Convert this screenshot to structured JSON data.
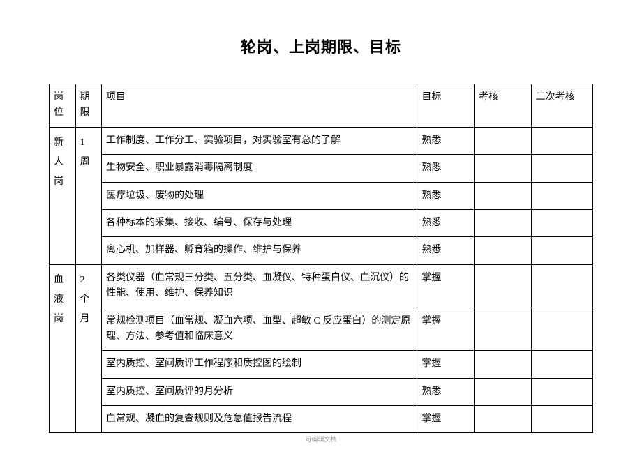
{
  "title": "轮岗、上岗期限、目标",
  "headers": {
    "position": "岗位",
    "duration": "期限",
    "item": "项目",
    "target": "目标",
    "assess1": "考核",
    "assess2": "二次考核"
  },
  "group1": {
    "position": "新人岗",
    "duration": "1周",
    "rows": [
      {
        "item": "工作制度、工作分工、实验项目，对实验室有总的了解",
        "target": "熟悉"
      },
      {
        "item": "生物安全、职业暴露消毒隔离制度",
        "target": "熟悉"
      },
      {
        "item": "医疗垃圾、废物的处理",
        "target": "熟悉"
      },
      {
        "item": "各种标本的采集、接收、编号、保存与处理",
        "target": "熟悉"
      },
      {
        "item": "离心机、加样器、孵育箱的操作、维护与保养",
        "target": "熟悉"
      }
    ]
  },
  "group2": {
    "position": "血液岗",
    "duration": "2个月",
    "rows": [
      {
        "item": "各类仪器（血常规三分类、五分类、血凝仪、特种蛋白仪、血沉仪）的性能、使用、维护、保养知识",
        "target": "掌握"
      },
      {
        "item": "常规检测项目（血常规、凝血六项、血型、超敏 C 反应蛋白）的测定原理、方法、参考值和临床意义",
        "target": "掌握"
      },
      {
        "item": "室内质控、室间质评工作程序和质控图的绘制",
        "target": "掌握"
      },
      {
        "item": "室内质控、室间质评的月分析",
        "target": "熟悉"
      },
      {
        "item": "血常规、凝血的复查规则及危急值报告流程",
        "target": "掌握"
      }
    ]
  },
  "footer": "可编辑文档"
}
